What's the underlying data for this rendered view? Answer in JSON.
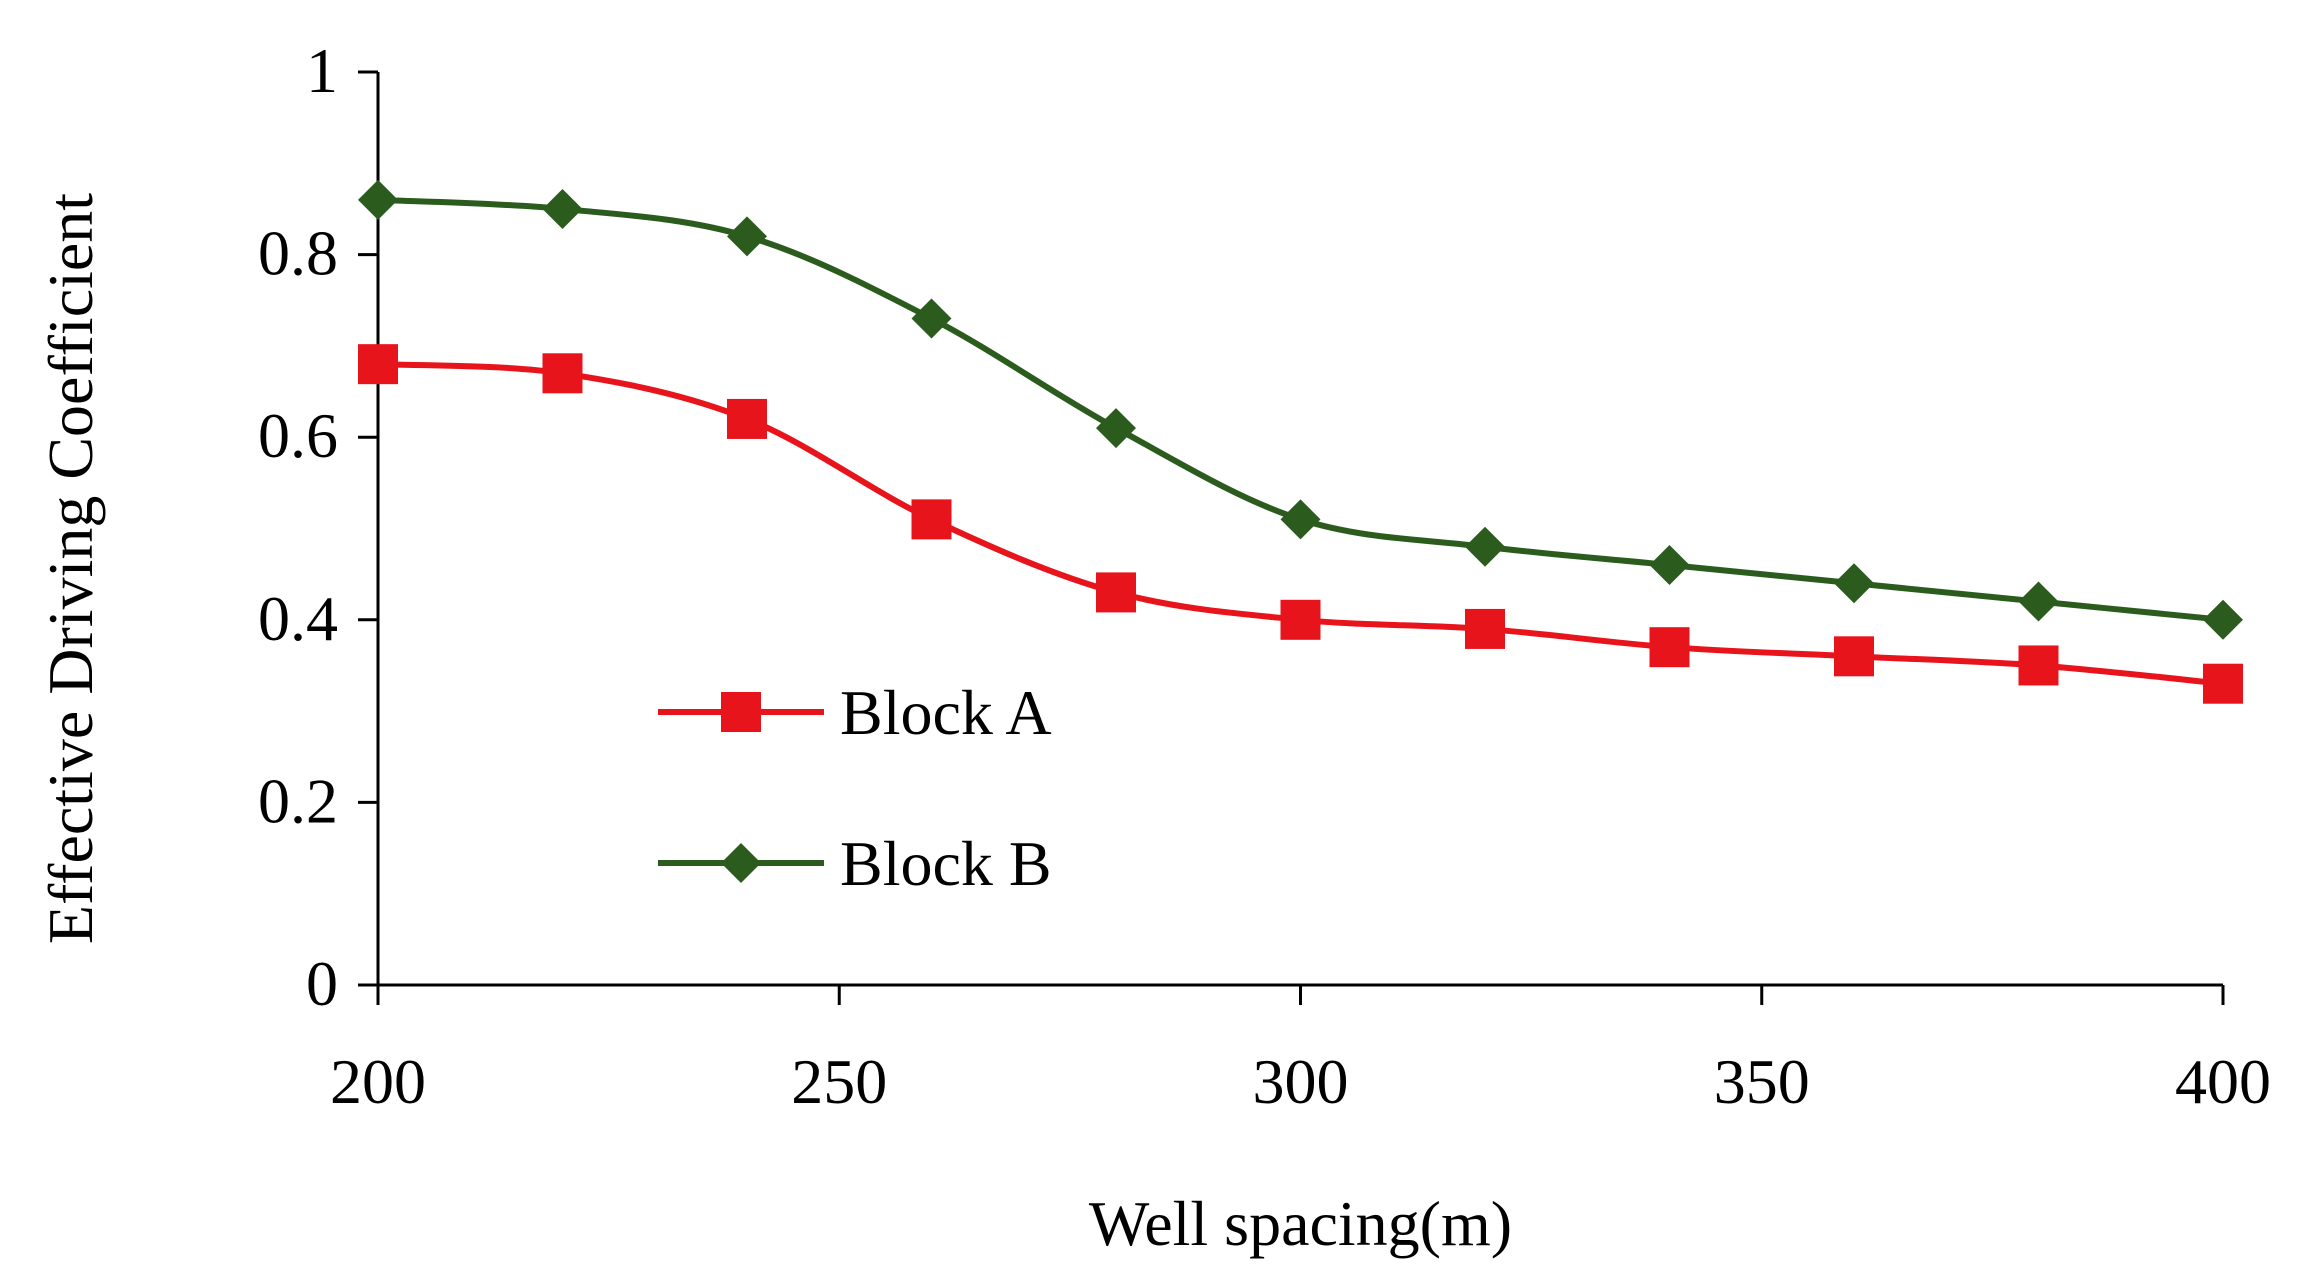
{
  "chart_data": {
    "type": "line",
    "title": "",
    "xlabel": "Well spacing(m)",
    "ylabel": "Effective Driving Coefficient",
    "xlim": [
      200,
      400
    ],
    "ylim": [
      0,
      1
    ],
    "x_ticks": [
      "200",
      "250",
      "300",
      "350",
      "400"
    ],
    "x_tick_values": [
      200,
      250,
      300,
      350,
      400
    ],
    "y_ticks": [
      "0",
      "0.2",
      "0.4",
      "0.6",
      "0.8",
      "1"
    ],
    "y_tick_values": [
      0,
      0.2,
      0.4,
      0.6,
      0.8,
      1
    ],
    "grid": false,
    "legend_position": "lower-left",
    "x": [
      200,
      220,
      240,
      260,
      280,
      300,
      320,
      340,
      360,
      380,
      400
    ],
    "series": [
      {
        "name": "Block A",
        "marker": "square",
        "color": "#e8141c",
        "values": [
          0.68,
          0.67,
          0.62,
          0.51,
          0.43,
          0.4,
          0.39,
          0.37,
          0.36,
          0.35,
          0.33
        ]
      },
      {
        "name": "Block B",
        "marker": "diamond",
        "color": "#2b5c1e",
        "values": [
          0.86,
          0.85,
          0.82,
          0.73,
          0.61,
          0.51,
          0.48,
          0.46,
          0.44,
          0.42,
          0.4
        ]
      }
    ]
  }
}
